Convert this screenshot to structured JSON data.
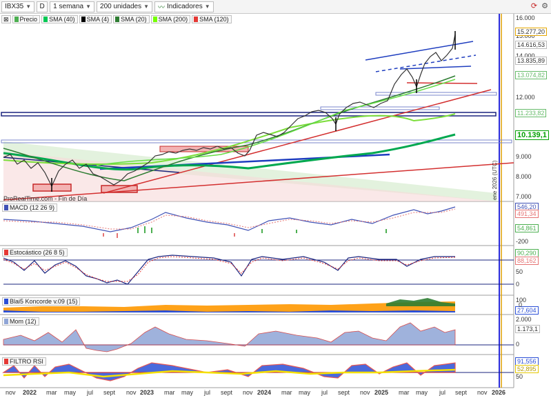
{
  "toolbar": {
    "symbol": "IBX35",
    "interval_short": "D",
    "timeframe": "1 semana",
    "units": "200 unidades",
    "indicators": "Indicadores"
  },
  "legend": [
    {
      "label": "Precio",
      "color": "#4caf50"
    },
    {
      "label": "SMA (40)",
      "color": "#00c853"
    },
    {
      "label": "SMA (4)",
      "color": "#000000"
    },
    {
      "label": "SMA (20)",
      "color": "#2e7d32"
    },
    {
      "label": "SMA (200)",
      "color": "#76ff03"
    },
    {
      "label": "SMA (120)",
      "color": "#e53935"
    }
  ],
  "price_axis": [
    "16.000",
    "15.000",
    "14.000",
    "12.000",
    "9.000",
    "8.000",
    "7.000"
  ],
  "price_badges": [
    {
      "value": "15.277,20",
      "color": "#e6a800"
    },
    {
      "value": "14.616,53",
      "color": "#333333"
    },
    {
      "value": "13.835,89",
      "color": "#333333"
    },
    {
      "value": "13.074,82",
      "color": "#66bb6a"
    },
    {
      "value": "11.233,82",
      "color": "#66bb6a"
    },
    {
      "value": "10.139,1",
      "color": "#00a000"
    }
  ],
  "source_note": "ProRealTime.com - Fin de Día",
  "vertical_note": "ene 2026 (UTC)",
  "panels": {
    "macd": {
      "label": "MACD (12 26 9)",
      "values": [
        "546,20",
        "491,34",
        "54,861"
      ],
      "axis": [
        "-200"
      ]
    },
    "stoch": {
      "label": "Estocástico (26 8 5)",
      "values": [
        "90,290",
        "88,162"
      ],
      "axis": [
        "50",
        "0"
      ]
    },
    "koncorde": {
      "label": "Blai5 Koncorde v.09 (15)",
      "values": [
        "100",
        "27,604"
      ],
      "axis": [
        "0"
      ]
    },
    "mom": {
      "label": "Mom (12)",
      "values": [
        "2.000",
        "1.173,1"
      ],
      "axis": [
        "0"
      ]
    },
    "rsi": {
      "label": "FILTRO RSI",
      "values": [
        "91,556",
        "52,895"
      ],
      "axis": [
        "50"
      ]
    }
  },
  "x_axis": [
    {
      "label": "nov",
      "year": false
    },
    {
      "label": "2022",
      "year": true
    },
    {
      "label": "mar",
      "year": false
    },
    {
      "label": "may",
      "year": false
    },
    {
      "label": "jul",
      "year": false
    },
    {
      "label": "sept",
      "year": false
    },
    {
      "label": "nov",
      "year": false
    },
    {
      "label": "2023",
      "year": true
    },
    {
      "label": "mar",
      "year": false
    },
    {
      "label": "may",
      "year": false
    },
    {
      "label": "jul",
      "year": false
    },
    {
      "label": "sept",
      "year": false
    },
    {
      "label": "nov",
      "year": false
    },
    {
      "label": "2024",
      "year": true
    },
    {
      "label": "mar",
      "year": false
    },
    {
      "label": "may",
      "year": false
    },
    {
      "label": "jul",
      "year": false
    },
    {
      "label": "sept",
      "year": false
    },
    {
      "label": "nov",
      "year": false
    },
    {
      "label": "2025",
      "year": true
    },
    {
      "label": "mar",
      "year": false
    },
    {
      "label": "may",
      "year": false
    },
    {
      "label": "jul",
      "year": false
    },
    {
      "label": "sept",
      "year": false
    },
    {
      "label": "nov",
      "year": false
    },
    {
      "label": "2026",
      "year": true
    }
  ]
}
